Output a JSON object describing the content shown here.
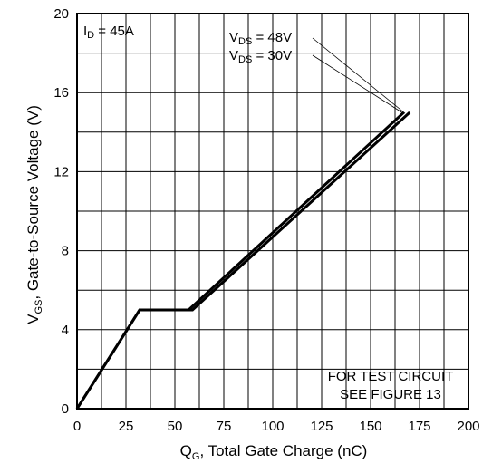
{
  "chart_data": {
    "type": "line",
    "xlabel": {
      "main": "Q",
      "sub": "G",
      "rest": ", Total Gate Charge (nC)"
    },
    "ylabel": {
      "main": "V",
      "sub": "GS",
      "rest": ", Gate-to-Source Voltage (V)"
    },
    "xlim": [
      0,
      200
    ],
    "ylim": [
      0,
      20
    ],
    "xticks": [
      0,
      25,
      50,
      75,
      100,
      125,
      150,
      175,
      200
    ],
    "yticks": [
      0,
      4,
      8,
      12,
      16,
      20
    ],
    "grid": true,
    "series": [
      {
        "name": "VDS = 30V",
        "x": [
          0,
          32,
          57,
          167
        ],
        "y": [
          0,
          5,
          5,
          15
        ]
      },
      {
        "name": "VDS = 48V",
        "x": [
          0,
          32,
          59,
          170
        ],
        "y": [
          0,
          5,
          5,
          15
        ]
      }
    ],
    "annotations": {
      "condition": {
        "main": "I",
        "sub": "D",
        "rest": " = 45A"
      },
      "vds_48": {
        "main": "V",
        "sub": "DS",
        "rest": " = 48V"
      },
      "vds_30": {
        "main": "V",
        "sub": "DS",
        "rest": " = 30V"
      },
      "note_line1": "FOR TEST CIRCUIT",
      "note_line2": "SEE FIGURE 13"
    }
  }
}
